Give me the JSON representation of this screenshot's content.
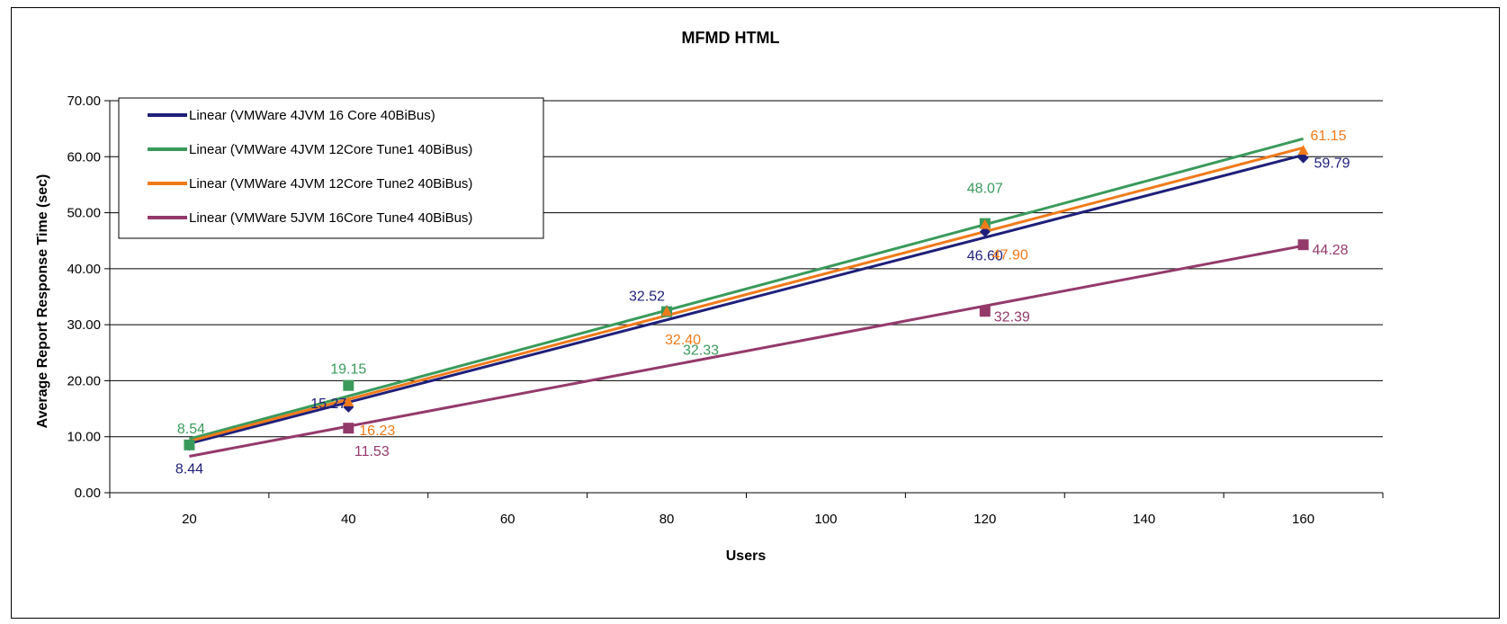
{
  "chart_data": {
    "type": "line",
    "title": "MFMD HTML",
    "xlabel": "Users",
    "ylabel": "Average Report Response Time (sec)",
    "xlim": [
      10,
      170
    ],
    "ylim": [
      0,
      70
    ],
    "x_ticks": [
      20,
      40,
      60,
      80,
      100,
      120,
      140,
      160
    ],
    "x_tick_labels": [
      "20",
      "40",
      "60",
      "80",
      "100",
      "120",
      "140",
      "160"
    ],
    "y_ticks": [
      0,
      10,
      20,
      30,
      40,
      50,
      60,
      70
    ],
    "y_tick_labels": [
      "0.00",
      "10.00",
      "20.00",
      "30.00",
      "40.00",
      "50.00",
      "60.00",
      "70.00"
    ],
    "grid": "horizontal",
    "legend_position": "top-left",
    "legend": [
      "Linear (VMWare 4JVM 16 Core 40BiBus)",
      "Linear (VMWare 4JVM 12Core Tune1 40BiBus)",
      "Linear (VMWare 4JVM 12Core Tune2 40BiBus)",
      "Linear (VMWare 5JVM 16Core Tune4 40BiBus)"
    ],
    "series": [
      {
        "color": "#1f1f7a",
        "marker": "diamond",
        "x": [
          20,
          40,
          80,
          120,
          160
        ],
        "y": [
          8.44,
          15.27,
          32.52,
          46.6,
          59.79
        ],
        "labels": [
          "8.44",
          "15.27",
          "32.52",
          "46.60",
          "59.79"
        ],
        "trend": [
          [
            20,
            8.8
          ],
          [
            160,
            60.3
          ]
        ]
      },
      {
        "color": "#3a9a5b",
        "marker": "square",
        "x": [
          20,
          40,
          80,
          120,
          160
        ],
        "y": [
          8.54,
          19.15,
          32.33,
          48.07,
          null
        ],
        "labels": [
          "8.54",
          "19.15",
          "32.33",
          "48.07",
          ""
        ],
        "trend": [
          [
            20,
            9.6
          ],
          [
            160,
            63.2
          ]
        ]
      },
      {
        "color": "#f07a1a",
        "marker": "triangle",
        "x": [
          40,
          80,
          120,
          160
        ],
        "y": [
          16.23,
          32.4,
          47.9,
          61.15
        ],
        "labels": [
          "16.23",
          "32.40",
          "47.90",
          "61.15"
        ],
        "trend": [
          [
            20,
            9.2
          ],
          [
            160,
            61.6
          ]
        ]
      },
      {
        "color": "#943a6b",
        "marker": "square",
        "x": [
          40,
          120,
          160
        ],
        "y": [
          11.53,
          32.39,
          44.28
        ],
        "labels": [
          "11.53",
          "32.39",
          "44.28"
        ],
        "trend": [
          [
            20,
            6.5
          ],
          [
            160,
            44.1
          ]
        ]
      }
    ]
  }
}
